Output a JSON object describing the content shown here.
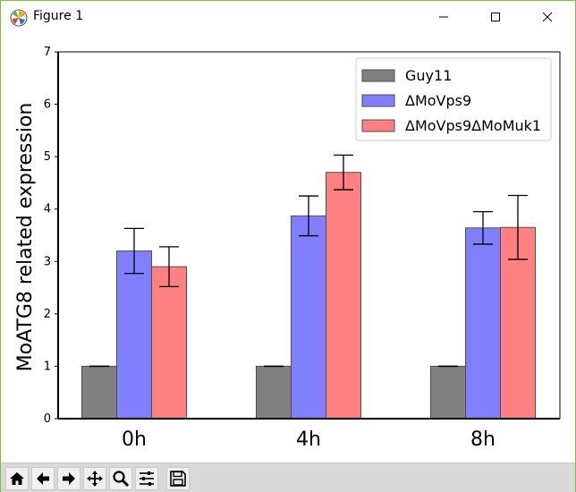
{
  "window": {
    "title": "Figure 1",
    "icons": {
      "app": "matplotlib-icon",
      "minimize": "minimize-icon",
      "maximize": "maximize-icon",
      "close": "close-icon"
    }
  },
  "toolbar": {
    "buttons": [
      {
        "name": "home-button",
        "icon": "home-icon"
      },
      {
        "name": "back-button",
        "icon": "arrow-left-icon"
      },
      {
        "name": "forward-button",
        "icon": "arrow-right-icon"
      },
      {
        "name": "pan-button",
        "icon": "pan-icon"
      },
      {
        "name": "zoom-button",
        "icon": "magnifier-icon"
      },
      {
        "name": "configure-subplots-button",
        "icon": "sliders-icon"
      },
      {
        "name": "save-button",
        "icon": "floppy-disk-icon"
      }
    ]
  },
  "chart_data": {
    "type": "bar",
    "ylabel": "MoATG8 related expression",
    "xlabel": "",
    "categories": [
      "0h",
      "4h",
      "8h"
    ],
    "ylim": [
      0,
      7
    ],
    "yticks": [
      0,
      1,
      2,
      3,
      4,
      5,
      6,
      7
    ],
    "grid": false,
    "legend_position": "top-right",
    "series": [
      {
        "name": "Guy11",
        "color": "#808080",
        "values": [
          1.0,
          1.0,
          1.0
        ],
        "errors": [
          0.0,
          0.0,
          0.0
        ]
      },
      {
        "name": "ΔMoVps9",
        "color": "#8080ff",
        "values": [
          3.2,
          3.87,
          3.64
        ],
        "errors": [
          0.43,
          0.38,
          0.31
        ]
      },
      {
        "name": "ΔMoVps9ΔMoMuk1",
        "color": "#ff8080",
        "values": [
          2.9,
          4.7,
          3.65
        ],
        "errors": [
          0.38,
          0.33,
          0.61
        ]
      }
    ]
  }
}
